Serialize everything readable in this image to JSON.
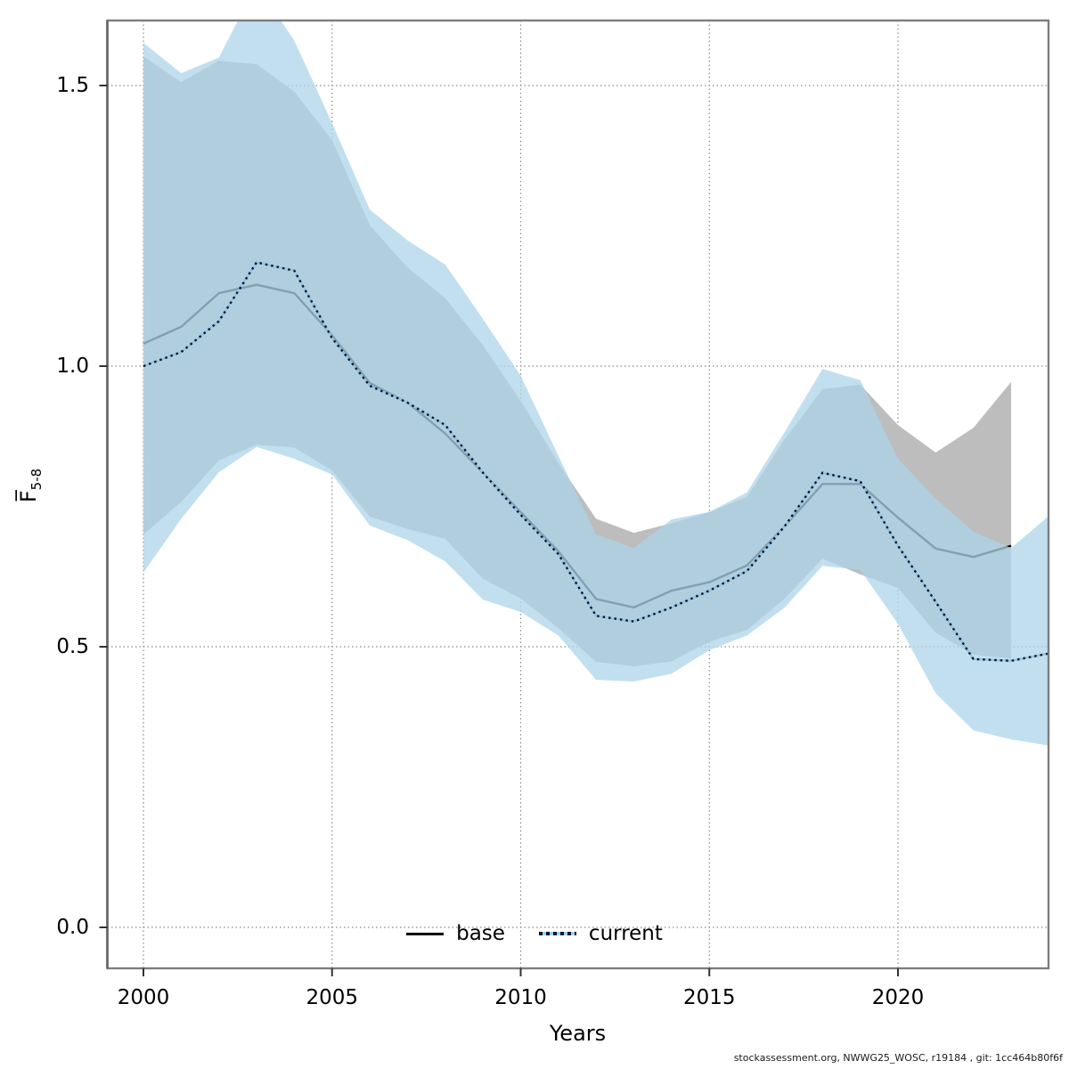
{
  "footer": "stockassessment.org, NWWG25_WOSC, r19184 , git: 1cc464b80f6f",
  "colors": {
    "base_band": "#bdbdbd",
    "base_line": "#000000",
    "current_band": "#aed4ea",
    "current_band_opacity": 0.75,
    "current_line_under": "#8fc6e8",
    "current_line_dots": "#10141f",
    "grid": "#8a8a8a",
    "box": "#7d7d7d",
    "tick": "#333333"
  },
  "chart_data": {
    "type": "area",
    "title": "",
    "xlabel": "Years",
    "ylabel_main": "F̅",
    "ylabel_sub": "5-8",
    "x_ticks": [
      2000,
      2005,
      2010,
      2015,
      2020
    ],
    "x_tick_labels": [
      "2000",
      "2005",
      "2010",
      "2015",
      "2020"
    ],
    "y_ticks": [
      0.0,
      0.5,
      1.0,
      1.5
    ],
    "y_tick_labels": [
      "0.0",
      "0.5",
      "1.0",
      "1.5"
    ],
    "xlim": [
      1999.0,
      2024.0
    ],
    "ylim": [
      -0.07,
      1.62
    ],
    "grid": true,
    "legend_position": "bottom-center",
    "legend": [
      {
        "label": "base",
        "style": "solid-black"
      },
      {
        "label": "current",
        "style": "dotted-blue"
      }
    ],
    "series": [
      {
        "name": "base",
        "years": [
          2000,
          2001,
          2002,
          2003,
          2004,
          2005,
          2006,
          2007,
          2008,
          2009,
          2010,
          2011,
          2012,
          2013,
          2014,
          2015,
          2016,
          2017,
          2018,
          2019,
          2020,
          2021,
          2022,
          2023
        ],
        "values": [
          1.04,
          1.07,
          1.13,
          1.145,
          1.13,
          1.055,
          0.97,
          0.935,
          0.88,
          0.81,
          0.74,
          0.67,
          0.585,
          0.57,
          0.6,
          0.615,
          0.645,
          0.715,
          0.79,
          0.79,
          0.73,
          0.675,
          0.66,
          0.68
        ],
        "lower": [
          0.7,
          0.758,
          0.832,
          0.86,
          0.855,
          0.814,
          0.732,
          0.71,
          0.692,
          0.621,
          0.586,
          0.533,
          0.473,
          0.465,
          0.474,
          0.509,
          0.53,
          0.586,
          0.657,
          0.629,
          0.605,
          0.525,
          0.486,
          0.479
        ],
        "upper": [
          1.552,
          1.506,
          1.544,
          1.538,
          1.489,
          1.403,
          1.251,
          1.176,
          1.121,
          1.037,
          0.938,
          0.827,
          0.728,
          0.703,
          0.72,
          0.74,
          0.767,
          0.87,
          0.959,
          0.967,
          0.895,
          0.846,
          0.89,
          0.972
        ]
      },
      {
        "name": "current",
        "years": [
          2000,
          2001,
          2002,
          2003,
          2004,
          2005,
          2006,
          2007,
          2008,
          2009,
          2010,
          2011,
          2012,
          2013,
          2014,
          2015,
          2016,
          2017,
          2018,
          2019,
          2020,
          2021,
          2022,
          2023,
          2024
        ],
        "values": [
          1.0,
          1.025,
          1.08,
          1.185,
          1.17,
          1.05,
          0.965,
          0.935,
          0.895,
          0.81,
          0.735,
          0.665,
          0.555,
          0.545,
          0.57,
          0.6,
          0.635,
          0.715,
          0.81,
          0.795,
          0.68,
          0.58,
          0.478,
          0.475,
          0.488
        ],
        "lower": [
          0.632,
          0.728,
          0.811,
          0.856,
          0.835,
          0.807,
          0.716,
          0.69,
          0.652,
          0.584,
          0.562,
          0.52,
          0.441,
          0.438,
          0.452,
          0.494,
          0.52,
          0.57,
          0.644,
          0.637,
          0.541,
          0.417,
          0.351,
          0.335,
          0.324
        ],
        "upper": [
          1.576,
          1.522,
          1.55,
          1.68,
          1.58,
          1.433,
          1.279,
          1.224,
          1.181,
          1.084,
          0.983,
          0.84,
          0.7,
          0.676,
          0.727,
          0.74,
          0.775,
          0.883,
          0.995,
          0.975,
          0.835,
          0.764,
          0.705,
          0.676,
          0.733
        ]
      }
    ]
  }
}
